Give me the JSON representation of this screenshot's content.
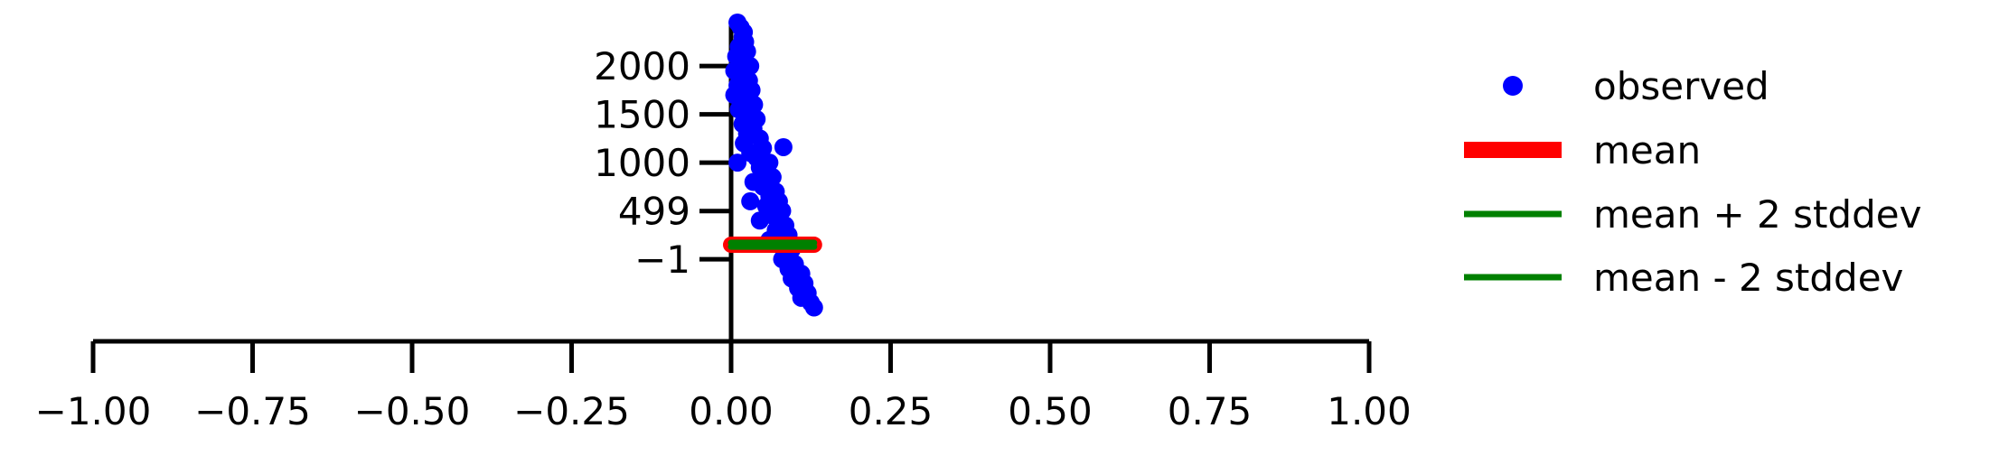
{
  "chart_data": {
    "type": "scatter",
    "title": "",
    "xlabel": "",
    "ylabel": "",
    "xlim": [
      -1.0,
      1.0
    ],
    "ylim": [
      -850,
      2450
    ],
    "x_ticks": [
      -1.0,
      -0.75,
      -0.5,
      -0.25,
      0.0,
      0.25,
      0.5,
      0.75,
      1.0
    ],
    "x_tick_labels": [
      "−1.00",
      "−0.75",
      "−0.50",
      "−0.25",
      "0.00",
      "0.25",
      "0.50",
      "0.75",
      "1.00"
    ],
    "y_ticks": [
      -1,
      499,
      1000,
      1500,
      2000
    ],
    "y_tick_labels": [
      "−1",
      "499",
      "1000",
      "1500",
      "2000"
    ],
    "grid": false,
    "legend_position": "right",
    "series": [
      {
        "name": "observed",
        "kind": "scatter",
        "color": "#0000ff",
        "points": [
          [
            0.01,
            2450
          ],
          [
            0.015,
            2400
          ],
          [
            0.02,
            2350
          ],
          [
            0.018,
            2300
          ],
          [
            0.022,
            2250
          ],
          [
            0.012,
            2200
          ],
          [
            0.025,
            2150
          ],
          [
            0.008,
            2100
          ],
          [
            0.02,
            2050
          ],
          [
            0.03,
            2000
          ],
          [
            0.005,
            1950
          ],
          [
            0.015,
            1900
          ],
          [
            0.028,
            1850
          ],
          [
            0.01,
            1800
          ],
          [
            0.032,
            1750
          ],
          [
            0.005,
            1700
          ],
          [
            0.022,
            1650
          ],
          [
            0.036,
            1600
          ],
          [
            0.012,
            1550
          ],
          [
            0.03,
            1500
          ],
          [
            0.04,
            1450
          ],
          [
            0.018,
            1400
          ],
          [
            0.035,
            1350
          ],
          [
            0.025,
            1300
          ],
          [
            0.045,
            1250
          ],
          [
            0.02,
            1200
          ],
          [
            0.05,
            1150
          ],
          [
            0.082,
            1160
          ],
          [
            0.03,
            1100
          ],
          [
            0.04,
            1050
          ],
          [
            0.06,
            1000
          ],
          [
            0.01,
            1000
          ],
          [
            0.045,
            950
          ],
          [
            0.055,
            900
          ],
          [
            0.065,
            850
          ],
          [
            0.035,
            800
          ],
          [
            0.05,
            750
          ],
          [
            0.07,
            700
          ],
          [
            0.06,
            650
          ],
          [
            0.075,
            600
          ],
          [
            0.03,
            600
          ],
          [
            0.055,
            550
          ],
          [
            0.08,
            500
          ],
          [
            0.065,
            450
          ],
          [
            0.045,
            400
          ],
          [
            0.085,
            350
          ],
          [
            0.07,
            300
          ],
          [
            0.09,
            250
          ],
          [
            0.06,
            200
          ],
          [
            0.075,
            150
          ],
          [
            0.095,
            100
          ],
          [
            0.085,
            50
          ],
          [
            0.08,
            0
          ],
          [
            0.1,
            -50
          ],
          [
            0.09,
            -100
          ],
          [
            0.11,
            -150
          ],
          [
            0.095,
            -200
          ],
          [
            0.115,
            -250
          ],
          [
            0.105,
            -300
          ],
          [
            0.12,
            -350
          ],
          [
            0.11,
            -400
          ],
          [
            0.125,
            -450
          ],
          [
            0.13,
            -500
          ]
        ]
      },
      {
        "name": "mean",
        "kind": "hline",
        "color": "#ff0000",
        "y": 150,
        "x_range": [
          0.0,
          0.13
        ]
      },
      {
        "name": "mean + 2 stddev",
        "kind": "hline",
        "color": "#008000",
        "y": 170,
        "x_range": [
          0.0,
          0.13
        ]
      },
      {
        "name": "mean - 2 stddev",
        "kind": "hline",
        "color": "#008000",
        "y": 130,
        "x_range": [
          0.0,
          0.13
        ]
      }
    ]
  }
}
